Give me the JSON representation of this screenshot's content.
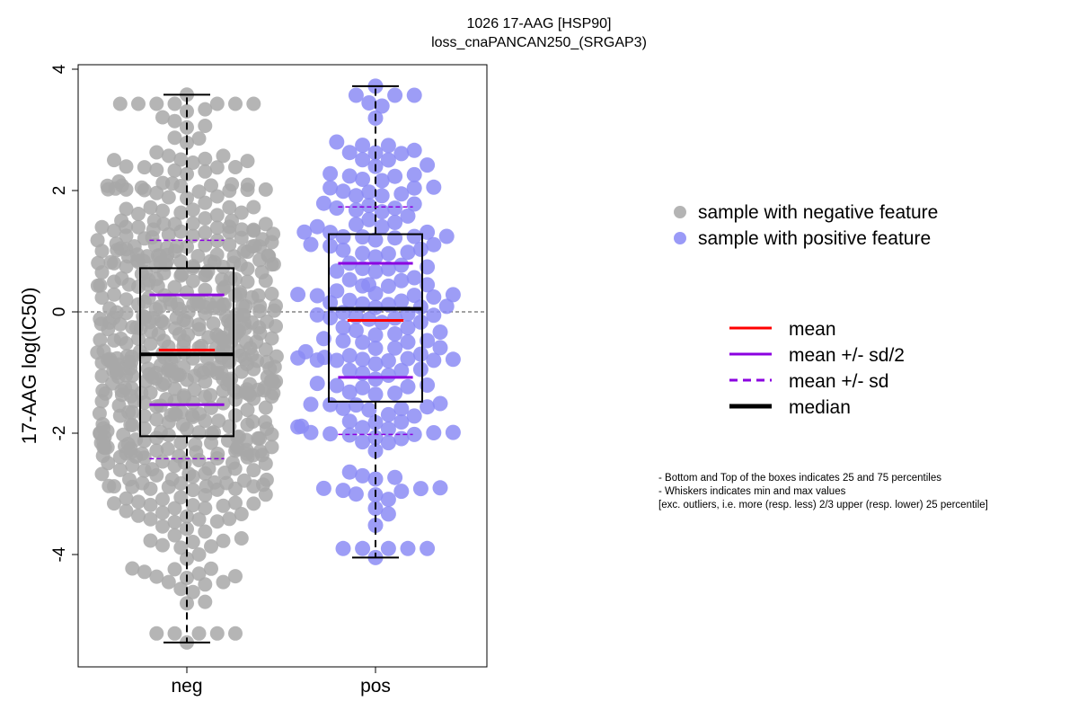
{
  "chart_data": {
    "type": "scatter",
    "subtype": "beeswarm-boxplot",
    "title": "1026 17-AAG [HSP90]",
    "subtitle": "loss_cnaPANCAN250_(SRGAP3)",
    "xlabel": "",
    "ylabel": "17-AAG log(IC50)",
    "categories": [
      "neg",
      "pos"
    ],
    "ylim": [
      -5.9,
      4.0
    ],
    "yticks": [
      -4,
      -2,
      0,
      2,
      4
    ],
    "reference_line_y": 0,
    "groups": [
      {
        "name": "neg",
        "color": "#A8A8A8",
        "n_points_approx": 600,
        "whisker_min": -5.45,
        "q1": -2.05,
        "median": -0.7,
        "q3": 0.72,
        "whisker_max": 3.58,
        "mean": -0.63,
        "mean_minus_half_sd": -1.53,
        "mean_plus_half_sd": 0.28,
        "mean_minus_sd": -2.42,
        "mean_plus_sd": 1.18
      },
      {
        "name": "pos",
        "color": "#8C8CF5",
        "n_points_approx": 190,
        "whisker_min": -4.05,
        "q1": -1.48,
        "median": 0.05,
        "q3": 1.28,
        "whisker_max": 3.72,
        "mean": -0.14,
        "mean_minus_half_sd": -1.08,
        "mean_plus_half_sd": 0.8,
        "mean_minus_sd": -2.02,
        "mean_plus_sd": 1.73
      }
    ],
    "legend_points": [
      {
        "label": "sample with negative feature",
        "color": "#B4B4B4"
      },
      {
        "label": "sample with positive feature",
        "color": "#9A9AF7"
      }
    ],
    "legend_lines": [
      {
        "label": "mean",
        "color": "#FF0000",
        "style": "solid"
      },
      {
        "label": "mean +/- sd/2",
        "color": "#8B00E0",
        "style": "solid"
      },
      {
        "label": "mean +/- sd",
        "color": "#8B00E0",
        "style": "dashed"
      },
      {
        "label": "median",
        "color": "#000000",
        "style": "solid-thick"
      }
    ],
    "notes": [
      "- Bottom and Top of the boxes indicates 25 and 75 percentiles",
      "- Whiskers indicates min and max values",
      "[exc. outliers, i.e. more (resp. less) 2/3 upper (resp. lower) 25 percentile]"
    ]
  }
}
